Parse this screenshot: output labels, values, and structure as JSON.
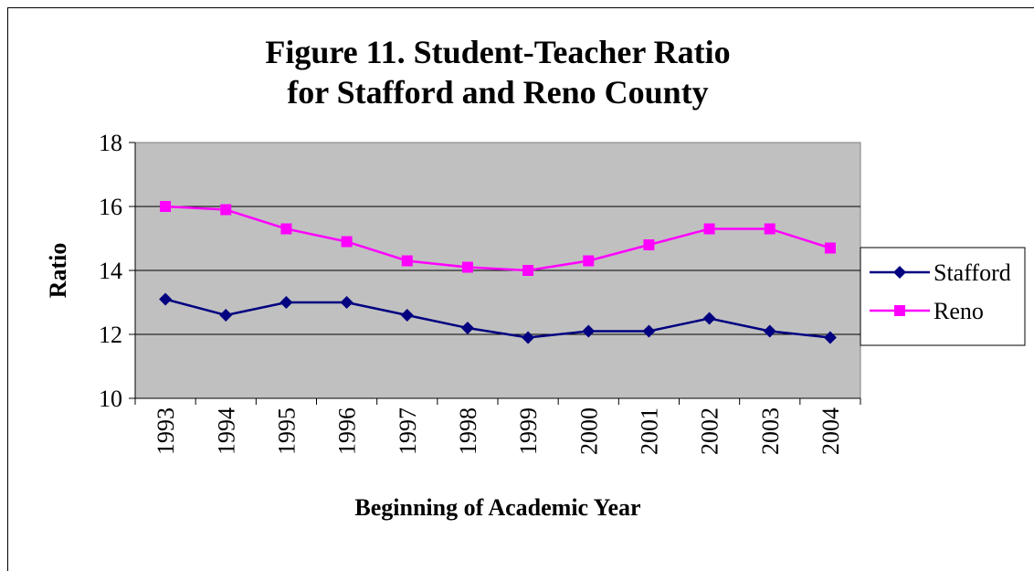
{
  "chart_data": {
    "type": "line",
    "title": [
      "Figure 11. Student-Teacher Ratio",
      "for Stafford and Reno County"
    ],
    "x_label": "Beginning of Academic Year",
    "y_label": "Ratio",
    "categories": [
      "1993",
      "1994",
      "1995",
      "1996",
      "1997",
      "1998",
      "1999",
      "2000",
      "2001",
      "2002",
      "2003",
      "2004"
    ],
    "series": [
      {
        "name": "Stafford",
        "color": "#000080",
        "marker": "diamond",
        "values": [
          13.1,
          12.6,
          13.0,
          13.0,
          12.6,
          12.2,
          11.9,
          12.1,
          12.1,
          12.5,
          12.1,
          11.9
        ]
      },
      {
        "name": "Reno",
        "color": "#ff00ff",
        "marker": "square",
        "values": [
          16.0,
          15.9,
          15.3,
          14.9,
          14.3,
          14.1,
          14.0,
          14.3,
          14.8,
          15.3,
          15.3,
          14.7
        ]
      }
    ],
    "ylim": [
      10,
      18
    ],
    "yticks": [
      10,
      12,
      14,
      16,
      18
    ],
    "grid": true,
    "legend": "right"
  }
}
